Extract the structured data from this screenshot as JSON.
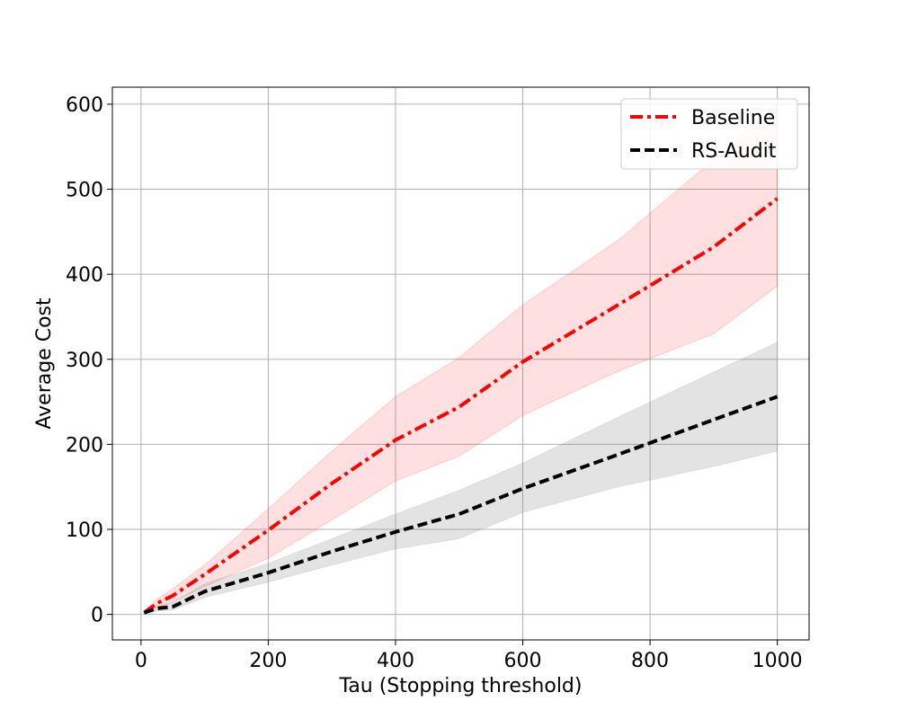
{
  "chart_data": {
    "type": "line",
    "title": "",
    "xlabel": "Tau (Stopping threshold)",
    "ylabel": "Average Cost",
    "xlim": [
      -45,
      1050
    ],
    "ylim": [
      -30,
      620
    ],
    "xticks": [
      0,
      200,
      400,
      600,
      800,
      1000
    ],
    "yticks": [
      0,
      100,
      200,
      300,
      400,
      500,
      600
    ],
    "grid": true,
    "legend": "top-right",
    "series": [
      {
        "name": "Baseline",
        "color": "#ff0000",
        "style": "dash-dot",
        "band_color": "#ff0000",
        "x": [
          5,
          25,
          50,
          100,
          200,
          300,
          400,
          500,
          600,
          750,
          900,
          1000
        ],
        "y": [
          2,
          13,
          22,
          47,
          99,
          154,
          205,
          244,
          297,
          364,
          432,
          489
        ],
        "lower": [
          1,
          8,
          15,
          33,
          66,
          111,
          157,
          186,
          234,
          286,
          330,
          386
        ],
        "upper": [
          4,
          18,
          30,
          58,
          124,
          192,
          256,
          302,
          364,
          440,
          535,
          600
        ]
      },
      {
        "name": "RS-Audit",
        "color": "#000000",
        "style": "dashed",
        "band_color": "#808080",
        "x": [
          5,
          25,
          50,
          100,
          200,
          300,
          400,
          500,
          600,
          750,
          900,
          1000
        ],
        "y": [
          2,
          7,
          9,
          27,
          49,
          74,
          97,
          118,
          148,
          188,
          229,
          256
        ],
        "lower": [
          1,
          4,
          5,
          20,
          38,
          58,
          77,
          89,
          120,
          150,
          174,
          192
        ],
        "upper": [
          3,
          10,
          14,
          36,
          60,
          89,
          118,
          146,
          178,
          232,
          285,
          320
        ]
      }
    ]
  }
}
